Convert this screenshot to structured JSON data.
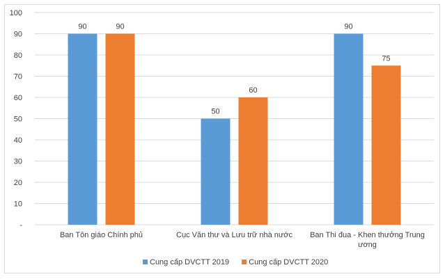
{
  "chart_data": {
    "type": "bar",
    "categories": [
      [
        "Ban Tôn giáo Chính phủ"
      ],
      [
        "Cục Văn thư và Lưu trữ nhà nước"
      ],
      [
        "Ban Thi đua - Khen thưởng Trung",
        "ương"
      ]
    ],
    "series": [
      {
        "name": "Cung cấp DVCTT 2019",
        "values": [
          90,
          50,
          90
        ],
        "color": "#5b9bd5"
      },
      {
        "name": "Cung cấp DVCTT 2020",
        "values": [
          90,
          60,
          75
        ],
        "color": "#ed7d31"
      }
    ],
    "y_ticks": [
      "-",
      "10",
      "20",
      "30",
      "40",
      "50",
      "60",
      "70",
      "80",
      "90",
      "100"
    ],
    "ylim": [
      0,
      100
    ],
    "grid": true,
    "legend_position": "bottom",
    "title": "",
    "xlabel": "",
    "ylabel": ""
  }
}
